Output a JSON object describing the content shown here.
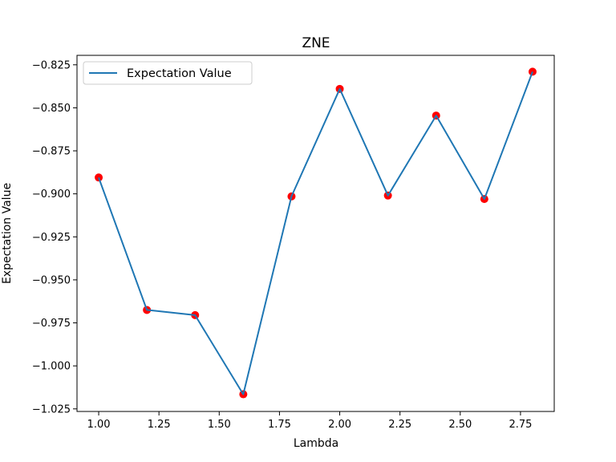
{
  "chart_data": {
    "type": "line",
    "title": "ZNE",
    "xlabel": "Lambda",
    "ylabel": "Expectation Value",
    "xlim": [
      0.91,
      2.89
    ],
    "ylim": [
      -1.0265,
      -0.8195
    ],
    "x_ticks": [
      1.0,
      1.25,
      1.5,
      1.75,
      2.0,
      2.25,
      2.5,
      2.75
    ],
    "x_tick_labels": [
      "1.00",
      "1.25",
      "1.50",
      "1.75",
      "2.00",
      "2.25",
      "2.50",
      "2.75"
    ],
    "y_ticks": [
      -0.825,
      -0.85,
      -0.875,
      -0.9,
      -0.925,
      -0.95,
      -0.975,
      -1.0,
      -1.025
    ],
    "y_tick_labels": [
      "−0.825",
      "−0.850",
      "−0.875",
      "−0.900",
      "−0.925",
      "−0.950",
      "−0.975",
      "−1.000",
      "−1.025"
    ],
    "grid": false,
    "legend": {
      "position": "top-left",
      "entries": [
        "Expectation Value"
      ]
    },
    "series": [
      {
        "name": "Expectation Value",
        "kind": "line",
        "color": "#1f77b4",
        "x": [
          1.0,
          1.2,
          1.4,
          1.6,
          1.8,
          2.0,
          2.2,
          2.4,
          2.6,
          2.8
        ],
        "y": [
          -0.8905,
          -0.9675,
          -0.9705,
          -1.0165,
          -0.9015,
          -0.839,
          -0.901,
          -0.8545,
          -0.903,
          -0.829
        ]
      },
      {
        "kind": "scatter",
        "color": "#ff0000",
        "x": [
          1.0,
          1.2,
          1.4,
          1.6,
          1.8,
          2.0,
          2.2,
          2.4,
          2.6,
          2.8
        ],
        "y": [
          -0.8905,
          -0.9675,
          -0.9705,
          -1.0165,
          -0.9015,
          -0.839,
          -0.901,
          -0.8545,
          -0.903,
          -0.829
        ]
      }
    ]
  }
}
